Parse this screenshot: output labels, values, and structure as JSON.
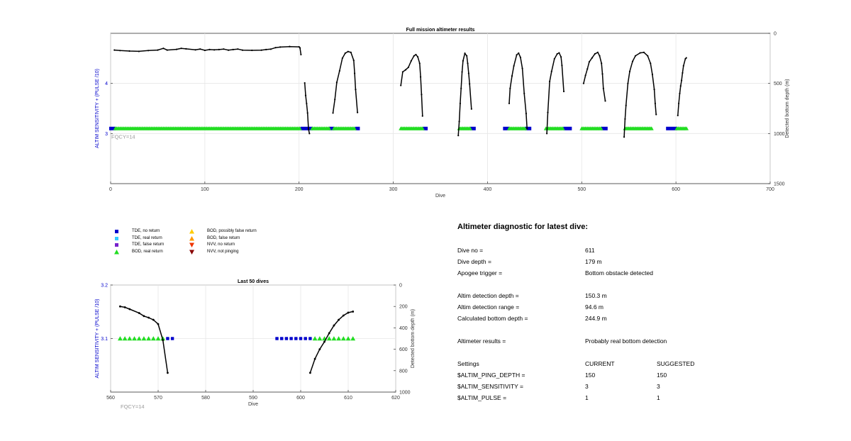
{
  "colors": {
    "tde_no_return": "#0000cc",
    "tde_real_return": "#33ccff",
    "tde_false_return": "#7722cc",
    "bod_real_return": "#22dd22",
    "bod_possibly_false": "#ffcc00",
    "bod_false_return": "#ff9900",
    "nvv_no_return": "#ee3300",
    "nvv_not_pinging": "#880000",
    "axis_left_label": "#0000cc",
    "fqcy_label": "#999999"
  },
  "chart_data": [
    {
      "type": "scatter",
      "title": "Full mission altimeter results",
      "xlabel": "Dive",
      "ylabel_left": "ALTIM SENSITIVITY + (PULSE /10)",
      "ylabel_right": "Detected bottom depth (m)",
      "xlim": [
        0,
        700
      ],
      "ylim_left": [
        2.0,
        5.0
      ],
      "ylim_right": [
        0,
        1500
      ],
      "right_axis_reversed": true,
      "x_ticks": [
        "0",
        "100",
        "200",
        "300",
        "400",
        "500",
        "600",
        "700"
      ],
      "y_left_ticks": [
        "3",
        "4"
      ],
      "y_right_ticks": [
        "0",
        "500",
        "1000",
        "1500"
      ],
      "grid": true,
      "annotation": "FQCY=14",
      "bod_real_segments": [
        [
          5,
          202
        ],
        [
          214,
          232
        ],
        [
          237,
          260
        ],
        [
          308,
          332
        ],
        [
          370,
          382
        ],
        [
          423,
          440
        ],
        [
          462,
          481
        ],
        [
          500,
          521
        ],
        [
          546,
          575
        ],
        [
          601,
          612
        ]
      ],
      "tde_no_return_segments": [
        [
          0,
          4
        ],
        [
          203,
          213
        ],
        [
          233,
          236
        ],
        [
          261,
          263
        ],
        [
          333,
          335
        ],
        [
          383,
          386
        ],
        [
          418,
          422
        ],
        [
          441,
          445
        ],
        [
          482,
          488
        ],
        [
          522,
          526
        ],
        [
          591,
          600
        ]
      ],
      "bottom_depth_segments": [
        [
          [
            4,
            167
          ],
          [
            10,
            172
          ],
          [
            20,
            177
          ],
          [
            30,
            180
          ],
          [
            40,
            172
          ],
          [
            50,
            167
          ],
          [
            56,
            150
          ],
          [
            60,
            167
          ],
          [
            70,
            160
          ],
          [
            75,
            150
          ],
          [
            80,
            155
          ],
          [
            90,
            165
          ],
          [
            95,
            157
          ],
          [
            100,
            170
          ],
          [
            105,
            162
          ],
          [
            110,
            165
          ],
          [
            115,
            162
          ],
          [
            120,
            157
          ],
          [
            125,
            168
          ],
          [
            130,
            162
          ],
          [
            135,
            157
          ],
          [
            140,
            168
          ],
          [
            150,
            170
          ],
          [
            160,
            168
          ],
          [
            165,
            162
          ],
          [
            170,
            158
          ],
          [
            175,
            143
          ],
          [
            180,
            137
          ],
          [
            190,
            132
          ],
          [
            200,
            135
          ],
          [
            201,
            145
          ],
          [
            202,
            212
          ]
        ],
        [
          [
            206,
            495
          ],
          [
            207,
            620
          ],
          [
            208,
            700
          ],
          [
            209,
            795
          ],
          [
            210,
            955
          ],
          [
            211,
            1000
          ]
        ],
        [
          [
            236,
            795
          ],
          [
            238,
            660
          ],
          [
            240,
            490
          ],
          [
            243,
            375
          ],
          [
            246,
            248
          ],
          [
            249,
            198
          ],
          [
            252,
            182
          ],
          [
            255,
            190
          ],
          [
            258,
            270
          ],
          [
            259,
            400
          ],
          [
            260,
            560
          ],
          [
            262,
            790
          ]
        ],
        [
          [
            308,
            520
          ],
          [
            310,
            385
          ],
          [
            313,
            365
          ],
          [
            316,
            340
          ],
          [
            319,
            275
          ],
          [
            322,
            225
          ],
          [
            324,
            212
          ],
          [
            326,
            235
          ],
          [
            328,
            300
          ],
          [
            329,
            435
          ],
          [
            330,
            610
          ],
          [
            331,
            825
          ]
        ],
        [
          [
            369,
            1020
          ],
          [
            370,
            880
          ],
          [
            371,
            700
          ],
          [
            372,
            550
          ],
          [
            373,
            385
          ],
          [
            374,
            275
          ],
          [
            376,
            200
          ],
          [
            378,
            225
          ],
          [
            379,
            300
          ],
          [
            380,
            400
          ],
          [
            381,
            505
          ],
          [
            383,
            755
          ]
        ],
        [
          [
            423,
            700
          ],
          [
            424,
            550
          ],
          [
            426,
            425
          ],
          [
            428,
            325
          ],
          [
            431,
            215
          ],
          [
            433,
            198
          ],
          [
            435,
            240
          ],
          [
            437,
            350
          ],
          [
            439,
            600
          ],
          [
            441,
            800
          ],
          [
            442,
            950
          ]
        ],
        [
          [
            463,
            1000
          ],
          [
            464,
            790
          ],
          [
            466,
            480
          ],
          [
            468,
            380
          ],
          [
            471,
            255
          ],
          [
            474,
            205
          ],
          [
            476,
            195
          ],
          [
            478,
            235
          ],
          [
            479,
            320
          ],
          [
            481,
            580
          ]
        ],
        [
          [
            502,
            500
          ],
          [
            504,
            420
          ],
          [
            506,
            355
          ],
          [
            508,
            285
          ],
          [
            511,
            245
          ],
          [
            514,
            205
          ],
          [
            517,
            190
          ],
          [
            519,
            225
          ],
          [
            521,
            300
          ],
          [
            522,
            405
          ],
          [
            523,
            550
          ],
          [
            525,
            675
          ]
        ],
        [
          [
            545,
            1035
          ],
          [
            546,
            855
          ],
          [
            547,
            720
          ],
          [
            549,
            500
          ],
          [
            551,
            380
          ],
          [
            554,
            280
          ],
          [
            557,
            225
          ],
          [
            562,
            195
          ],
          [
            566,
            190
          ],
          [
            570,
            225
          ],
          [
            573,
            300
          ],
          [
            575,
            410
          ],
          [
            577,
            560
          ],
          [
            578,
            700
          ],
          [
            579,
            810
          ]
        ],
        [
          [
            602,
            820
          ],
          [
            603,
            700
          ],
          [
            604,
            600
          ],
          [
            605,
            525
          ],
          [
            606,
            470
          ],
          [
            607,
            395
          ],
          [
            608,
            325
          ],
          [
            610,
            255
          ],
          [
            611,
            245
          ]
        ]
      ]
    },
    {
      "type": "scatter",
      "title": "Last 50 dives",
      "xlabel": "Dive",
      "ylabel_left": "ALTIM SENSITIVITY + (PULSE /10)",
      "ylabel_right": "Detected bottom depth (m)",
      "xlim": [
        560,
        620
      ],
      "ylim_left": [
        3.0,
        3.2
      ],
      "ylim_right": [
        0,
        1000
      ],
      "right_axis_reversed": true,
      "x_ticks": [
        "560",
        "570",
        "580",
        "590",
        "600",
        "610",
        "620"
      ],
      "y_left_ticks": [
        "3.1",
        "3.2"
      ],
      "y_right_ticks": [
        "0",
        "200",
        "400",
        "600",
        "800",
        "1000"
      ],
      "grid": true,
      "annotation": "FQCY=14",
      "bod_real_dives": [
        562,
        563,
        564,
        565,
        566,
        567,
        568,
        569,
        570,
        571,
        603,
        604,
        605,
        606,
        607,
        608,
        609,
        610,
        611
      ],
      "tde_no_return_dives": [
        572,
        573,
        595,
        596,
        597,
        598,
        599,
        600,
        601,
        602
      ],
      "bottom_depth_segments": [
        [
          [
            562,
            200
          ],
          [
            563,
            208
          ],
          [
            564,
            225
          ],
          [
            566,
            262
          ],
          [
            567,
            290
          ],
          [
            568,
            305
          ],
          [
            569,
            325
          ],
          [
            570,
            365
          ],
          [
            571,
            515
          ],
          [
            572,
            820
          ]
        ],
        [
          [
            602,
            820
          ],
          [
            603,
            690
          ],
          [
            604,
            600
          ],
          [
            605,
            530
          ],
          [
            606,
            450
          ],
          [
            607,
            378
          ],
          [
            608,
            325
          ],
          [
            609,
            285
          ],
          [
            610,
            258
          ],
          [
            611,
            248
          ]
        ]
      ]
    }
  ],
  "legend": [
    {
      "label": "TDE, no return",
      "shape": "square",
      "color": "#0000cc"
    },
    {
      "label": "TDE, real return",
      "shape": "square",
      "color": "#33ccff"
    },
    {
      "label": "TDE, false return",
      "shape": "square",
      "color": "#7722cc"
    },
    {
      "label": "BOD, real return",
      "shape": "triangle-up",
      "color": "#22dd22"
    },
    {
      "label": "BOD, possibly false return",
      "shape": "triangle-up",
      "color": "#ffcc00"
    },
    {
      "label": "BOD, false return",
      "shape": "triangle-up",
      "color": "#ff9900"
    },
    {
      "label": "NVV, no return",
      "shape": "triangle-down",
      "color": "#ee3300"
    },
    {
      "label": "NVV, not pinging",
      "shape": "triangle-down",
      "color": "#880000"
    }
  ],
  "diagnostic": {
    "title": "Altimeter diagnostic for latest dive:",
    "rows": [
      {
        "label": "Dive no =",
        "value": "611"
      },
      {
        "label": "Dive depth =",
        "value": "179 m"
      },
      {
        "label": "Apogee trigger =",
        "value": "Bottom obstacle detected"
      },
      {
        "label": "Altim detection depth =",
        "value": "150.3 m"
      },
      {
        "label": "Altim detection range =",
        "value": "94.6 m"
      },
      {
        "label": "Calculated bottom depth =",
        "value": "244.9 m"
      },
      {
        "label": "Altimeter results =",
        "value": "Probably real bottom detection"
      }
    ],
    "settings_header": {
      "label": "Settings",
      "current": "CURRENT",
      "suggested": "SUGGESTED"
    },
    "settings": [
      {
        "label": "$ALTIM_PING_DEPTH =",
        "current": "150",
        "suggested": "150"
      },
      {
        "label": "$ALTIM_SENSITIVITY =",
        "current": "3",
        "suggested": "3"
      },
      {
        "label": "$ALTIM_PULSE =",
        "current": "1",
        "suggested": "1"
      }
    ]
  }
}
